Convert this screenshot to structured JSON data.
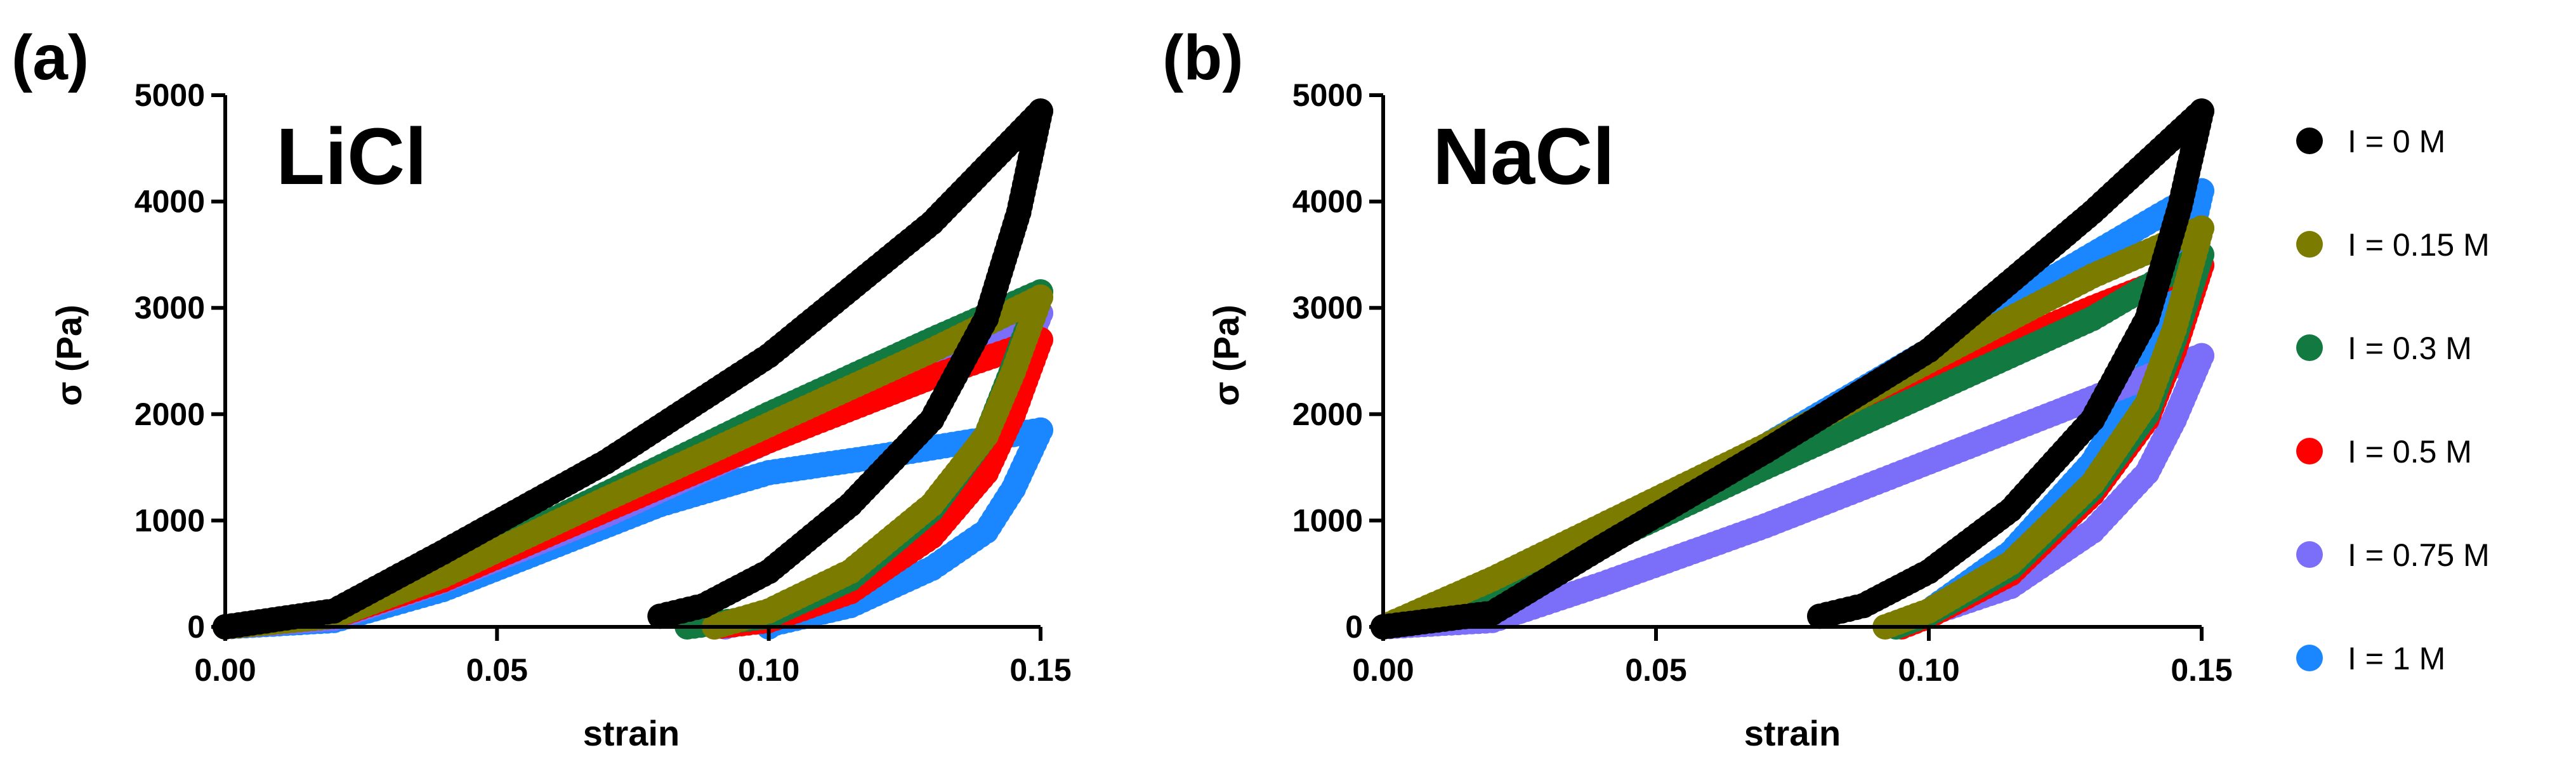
{
  "legend": {
    "entries": [
      {
        "label": "I = 0 M",
        "color": "#000000"
      },
      {
        "label": "I = 0.15 M",
        "color": "#7b7b00"
      },
      {
        "label": "I = 0.3 M",
        "color": "#127a40"
      },
      {
        "label": "I = 0.5 M",
        "color": "#ff0000"
      },
      {
        "label": "I = 0.75 M",
        "color": "#7b6ef8"
      },
      {
        "label": "I = 1 M",
        "color": "#1a86ff"
      }
    ]
  },
  "chart_data": [
    {
      "type": "scatter",
      "panel_label": "(a)",
      "title": "LiCl",
      "xlabel": "strain",
      "ylabel": "σ (Pa)",
      "xlim": [
        0,
        0.15
      ],
      "ylim": [
        0,
        5000
      ],
      "xticks": [
        0,
        0.05,
        0.1,
        0.15
      ],
      "xtick_labels": [
        "0.00",
        "0.05",
        "0.10",
        "0.15"
      ],
      "yticks": [
        0,
        1000,
        2000,
        3000,
        4000,
        5000
      ],
      "ytick_labels": [
        "0",
        "1000",
        "2000",
        "3000",
        "4000",
        "5000"
      ],
      "series": [
        {
          "name": "I = 0 M",
          "color": "#000000",
          "loading": [
            [
              0,
              0
            ],
            [
              0.02,
              150
            ],
            [
              0.04,
              700
            ],
            [
              0.07,
              1550
            ],
            [
              0.1,
              2550
            ],
            [
              0.13,
              3800
            ],
            [
              0.15,
              4850
            ]
          ],
          "unloading": [
            [
              0.15,
              4850
            ],
            [
              0.146,
              3900
            ],
            [
              0.14,
              2900
            ],
            [
              0.13,
              1950
            ],
            [
              0.115,
              1150
            ],
            [
              0.1,
              520
            ],
            [
              0.088,
              200
            ],
            [
              0.08,
              100
            ]
          ]
        },
        {
          "name": "I = 0.15 M",
          "color": "#7b7b00",
          "loading": [
            [
              0,
              0
            ],
            [
              0.02,
              100
            ],
            [
              0.04,
              480
            ],
            [
              0.07,
              1200
            ],
            [
              0.1,
              1900
            ],
            [
              0.13,
              2600
            ],
            [
              0.15,
              3100
            ]
          ],
          "unloading": [
            [
              0.15,
              3100
            ],
            [
              0.145,
              2400
            ],
            [
              0.14,
              1800
            ],
            [
              0.13,
              1150
            ],
            [
              0.115,
              520
            ],
            [
              0.1,
              150
            ],
            [
              0.09,
              0
            ]
          ]
        },
        {
          "name": "I = 0.3 M",
          "color": "#127a40",
          "loading": [
            [
              0,
              0
            ],
            [
              0.02,
              100
            ],
            [
              0.04,
              500
            ],
            [
              0.07,
              1250
            ],
            [
              0.1,
              2000
            ],
            [
              0.13,
              2700
            ],
            [
              0.15,
              3150
            ]
          ],
          "unloading": [
            [
              0.15,
              3150
            ],
            [
              0.145,
              2450
            ],
            [
              0.14,
              1800
            ],
            [
              0.13,
              1100
            ],
            [
              0.115,
              450
            ],
            [
              0.1,
              100
            ],
            [
              0.085,
              0
            ]
          ]
        },
        {
          "name": "I = 0.5 M",
          "color": "#ff0000",
          "loading": [
            [
              0,
              0
            ],
            [
              0.02,
              100
            ],
            [
              0.04,
              440
            ],
            [
              0.07,
              1100
            ],
            [
              0.1,
              1750
            ],
            [
              0.13,
              2350
            ],
            [
              0.15,
              2700
            ]
          ],
          "unloading": [
            [
              0.15,
              2700
            ],
            [
              0.145,
              2000
            ],
            [
              0.14,
              1450
            ],
            [
              0.13,
              850
            ],
            [
              0.115,
              330
            ],
            [
              0.1,
              60
            ],
            [
              0.09,
              0
            ]
          ]
        },
        {
          "name": "I = 0.75 M",
          "color": "#7b6ef8",
          "loading": [
            [
              0,
              0
            ],
            [
              0.02,
              80
            ],
            [
              0.04,
              430
            ],
            [
              0.07,
              1050
            ],
            [
              0.1,
              1750
            ],
            [
              0.13,
              2450
            ],
            [
              0.15,
              2950
            ]
          ],
          "unloading": [
            [
              0.15,
              2950
            ],
            [
              0.145,
              2300
            ],
            [
              0.14,
              1700
            ],
            [
              0.13,
              1050
            ],
            [
              0.115,
              400
            ],
            [
              0.1,
              100
            ],
            [
              0.092,
              0
            ]
          ]
        },
        {
          "name": "I = 1 M",
          "color": "#1a86ff",
          "loading": [
            [
              0,
              0
            ],
            [
              0.02,
              60
            ],
            [
              0.04,
              350
            ],
            [
              0.06,
              750
            ],
            [
              0.08,
              1150
            ],
            [
              0.1,
              1450
            ],
            [
              0.12,
              1600
            ],
            [
              0.15,
              1850
            ]
          ],
          "unloading": [
            [
              0.15,
              1850
            ],
            [
              0.145,
              1300
            ],
            [
              0.14,
              900
            ],
            [
              0.13,
              550
            ],
            [
              0.115,
              200
            ],
            [
              0.1,
              20
            ],
            [
              0.1,
              0
            ]
          ]
        }
      ]
    },
    {
      "type": "scatter",
      "panel_label": "(b)",
      "title": "NaCl",
      "xlabel": "strain",
      "ylabel": "σ (Pa)",
      "xlim": [
        0,
        0.15
      ],
      "ylim": [
        0,
        5000
      ],
      "xticks": [
        0,
        0.05,
        0.1,
        0.15
      ],
      "xtick_labels": [
        "0.00",
        "0.05",
        "0.10",
        "0.15"
      ],
      "yticks": [
        0,
        1000,
        2000,
        3000,
        4000,
        5000
      ],
      "ytick_labels": [
        "0",
        "1000",
        "2000",
        "3000",
        "4000",
        "5000"
      ],
      "series": [
        {
          "name": "I = 0 M",
          "color": "#000000",
          "loading": [
            [
              0,
              0
            ],
            [
              0.02,
              130
            ],
            [
              0.04,
              750
            ],
            [
              0.07,
              1650
            ],
            [
              0.1,
              2600
            ],
            [
              0.13,
              3900
            ],
            [
              0.15,
              4850
            ]
          ],
          "unloading": [
            [
              0.15,
              4850
            ],
            [
              0.146,
              3950
            ],
            [
              0.14,
              2900
            ],
            [
              0.13,
              1950
            ],
            [
              0.115,
              1100
            ],
            [
              0.1,
              520
            ],
            [
              0.088,
              200
            ],
            [
              0.08,
              100
            ]
          ]
        },
        {
          "name": "I = 0.15 M",
          "color": "#7b7b00",
          "loading": [
            [
              0,
              0
            ],
            [
              0.02,
              450
            ],
            [
              0.04,
              950
            ],
            [
              0.07,
              1700
            ],
            [
              0.1,
              2500
            ],
            [
              0.13,
              3300
            ],
            [
              0.15,
              3750
            ]
          ],
          "unloading": [
            [
              0.15,
              3750
            ],
            [
              0.145,
              2800
            ],
            [
              0.14,
              2100
            ],
            [
              0.13,
              1350
            ],
            [
              0.115,
              600
            ],
            [
              0.1,
              150
            ],
            [
              0.092,
              0
            ]
          ]
        },
        {
          "name": "I = 0.3 M",
          "color": "#127a40",
          "loading": [
            [
              0,
              0
            ],
            [
              0.02,
              250
            ],
            [
              0.04,
              780
            ],
            [
              0.07,
              1500
            ],
            [
              0.1,
              2200
            ],
            [
              0.13,
              2900
            ],
            [
              0.15,
              3500
            ]
          ],
          "unloading": [
            [
              0.15,
              3500
            ],
            [
              0.145,
              2700
            ],
            [
              0.14,
              2000
            ],
            [
              0.13,
              1300
            ],
            [
              0.115,
              550
            ],
            [
              0.1,
              120
            ],
            [
              0.094,
              0
            ]
          ]
        },
        {
          "name": "I = 0.5 M",
          "color": "#ff0000",
          "loading": [
            [
              0,
              0
            ],
            [
              0.02,
              280
            ],
            [
              0.04,
              830
            ],
            [
              0.07,
              1600
            ],
            [
              0.1,
              2350
            ],
            [
              0.13,
              3000
            ],
            [
              0.15,
              3400
            ]
          ],
          "unloading": [
            [
              0.15,
              3400
            ],
            [
              0.145,
              2600
            ],
            [
              0.14,
              1950
            ],
            [
              0.13,
              1250
            ],
            [
              0.115,
              500
            ],
            [
              0.1,
              100
            ],
            [
              0.095,
              0
            ]
          ]
        },
        {
          "name": "I = 0.75 M",
          "color": "#7b6ef8",
          "loading": [
            [
              0,
              0
            ],
            [
              0.02,
              60
            ],
            [
              0.04,
              400
            ],
            [
              0.07,
              950
            ],
            [
              0.1,
              1550
            ],
            [
              0.13,
              2150
            ],
            [
              0.15,
              2550
            ]
          ],
          "unloading": [
            [
              0.15,
              2550
            ],
            [
              0.145,
              1950
            ],
            [
              0.14,
              1450
            ],
            [
              0.13,
              900
            ],
            [
              0.115,
              380
            ],
            [
              0.1,
              120
            ],
            [
              0.098,
              100
            ]
          ]
        },
        {
          "name": "I = 1 M",
          "color": "#1a86ff",
          "loading": [
            [
              0,
              0
            ],
            [
              0.02,
              330
            ],
            [
              0.04,
              880
            ],
            [
              0.07,
              1700
            ],
            [
              0.1,
              2600
            ],
            [
              0.13,
              3500
            ],
            [
              0.15,
              4100
            ]
          ],
          "unloading": [
            [
              0.15,
              4100
            ],
            [
              0.146,
              3200
            ],
            [
              0.14,
              2400
            ],
            [
              0.13,
              1550
            ],
            [
              0.115,
              700
            ],
            [
              0.1,
              150
            ],
            [
              0.094,
              0
            ]
          ]
        }
      ]
    }
  ]
}
